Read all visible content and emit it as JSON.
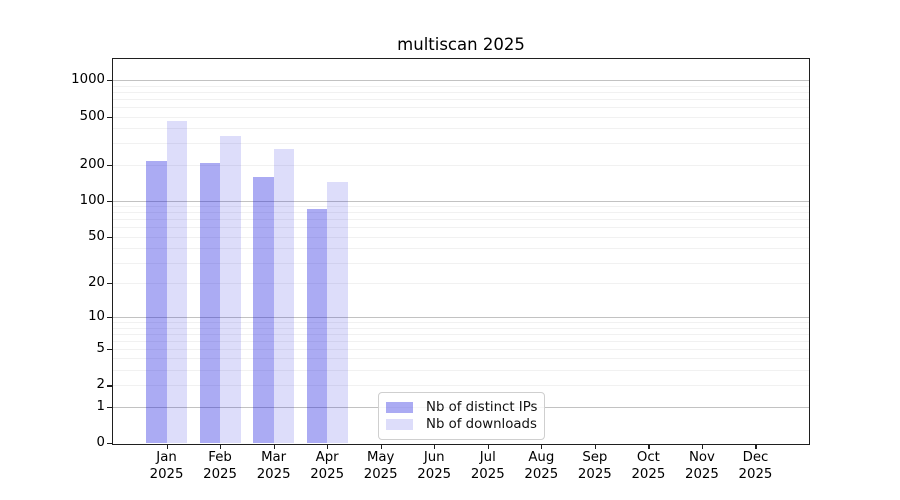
{
  "chart_data": {
    "type": "bar",
    "title": "multiscan 2025",
    "categories": [
      "Jan",
      "Feb",
      "Mar",
      "Apr",
      "May",
      "Jun",
      "Jul",
      "Aug",
      "Sep",
      "Oct",
      "Nov",
      "Dec"
    ],
    "year_label": "2025",
    "series": [
      {
        "name": "Nb of distinct IPs",
        "color": "rgba(15,15,220,0.35)",
        "values": [
          214,
          208,
          158,
          85,
          null,
          null,
          null,
          null,
          null,
          null,
          null,
          null
        ]
      },
      {
        "name": "Nb of downloads",
        "color": "rgba(15,15,220,0.14)",
        "values": [
          460,
          345,
          270,
          142,
          null,
          null,
          null,
          null,
          null,
          null,
          null,
          null
        ]
      }
    ],
    "yscale": "log1p",
    "ylim": [
      0,
      1500
    ],
    "yticks": [
      0,
      1,
      2,
      5,
      10,
      20,
      50,
      100,
      200,
      500,
      1000
    ],
    "grid": "horizontal major decade lines with faint log minor lines",
    "legend_position": "inside axes, bottom center-left"
  },
  "colors": {
    "bar_distinct_ips": "#aaaaf1",
    "bar_downloads": "#dcdcf8",
    "major_grid": "#c2c2c2",
    "minor_grid": "#f0f0f0",
    "axis_spine": "#1f1f1f",
    "background": "#ffffff",
    "legend_border": "#cfcfcf"
  }
}
